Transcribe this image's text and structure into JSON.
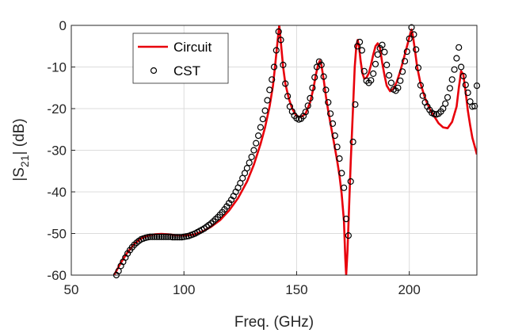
{
  "chart_data": {
    "type": "line",
    "title": "",
    "xlabel": "Freq. (GHz)",
    "ylabel_main": "|S",
    "ylabel_sub": "21",
    "ylabel_tail": "| (dB)",
    "xlim": [
      50,
      230
    ],
    "ylim": [
      -60,
      0
    ],
    "xticks": [
      50,
      100,
      150,
      200
    ],
    "yticks": [
      0,
      -10,
      -20,
      -30,
      -40,
      -50,
      -60
    ],
    "grid": true,
    "legend_position": "top-left",
    "series": [
      {
        "name": "Circuit",
        "style": "line",
        "color": "#e8000b",
        "x": [
          69,
          72,
          75,
          78,
          81,
          84,
          87,
          90,
          93,
          96,
          100,
          104,
          108,
          112,
          116,
          120,
          124,
          128,
          131,
          134,
          136,
          138,
          139.5,
          140.5,
          141.5,
          142.3,
          143,
          144,
          145,
          146.5,
          148,
          150,
          152,
          154,
          156,
          157.5,
          158.5,
          159.5,
          160.3,
          161,
          162,
          163,
          164,
          165,
          166,
          167,
          168,
          169,
          170,
          171,
          171.6,
          172,
          172.6,
          173.2,
          174,
          175,
          175.8,
          176.5,
          177.1,
          177.7,
          178.4,
          179.2,
          180,
          181,
          182,
          183,
          184,
          185,
          186,
          187,
          188,
          189,
          190,
          191.5,
          193,
          194.5,
          196,
          197.5,
          199,
          200.2,
          201,
          201.6,
          202.4,
          203.5,
          205,
          207,
          209,
          211,
          213,
          215,
          217,
          219,
          221,
          222,
          223,
          224,
          225,
          226,
          227,
          228,
          229,
          230
        ],
        "y": [
          -60,
          -57,
          -54.5,
          -52.5,
          -51.2,
          -50.5,
          -50.2,
          -50.1,
          -50.2,
          -50.4,
          -50.5,
          -50.3,
          -49.6,
          -48.4,
          -46.8,
          -44.5,
          -41.5,
          -37.5,
          -33.5,
          -28.5,
          -24.5,
          -19.5,
          -14.5,
          -9.5,
          -4,
          0,
          -4,
          -10,
          -14,
          -17.5,
          -20,
          -21.8,
          -22,
          -21.2,
          -18.5,
          -15,
          -12,
          -9.5,
          -8.5,
          -9.5,
          -13,
          -17,
          -20.5,
          -23.5,
          -26.5,
          -29.5,
          -32.5,
          -36,
          -40.5,
          -47,
          -56,
          -60,
          -54,
          -45,
          -33,
          -20,
          -10,
          -5,
          -3.5,
          -5,
          -8.5,
          -11.5,
          -12.8,
          -12.6,
          -11.5,
          -9.5,
          -7,
          -5,
          -4.3,
          -5.5,
          -9,
          -12,
          -14.5,
          -15.8,
          -15.2,
          -13.5,
          -11,
          -8,
          -5,
          -2.5,
          -1,
          -2.5,
          -5.5,
          -10,
          -14,
          -17.5,
          -20,
          -21.8,
          -23.5,
          -24.5,
          -24.7,
          -23.2,
          -19.5,
          -15,
          -11,
          -11.8,
          -16,
          -20.5,
          -24,
          -27,
          -29,
          -31
        ]
      },
      {
        "name": "CST",
        "style": "markers",
        "marker": "open-circle",
        "color": "#000000",
        "x": [
          70,
          71,
          72,
          73,
          74,
          75,
          76,
          77,
          78,
          79,
          80,
          81,
          82,
          83,
          84,
          85,
          86,
          87,
          88,
          89,
          90,
          91,
          92,
          93,
          94,
          95,
          96,
          97,
          98,
          99,
          100,
          101,
          102,
          103,
          104,
          105,
          106,
          107,
          108,
          109,
          110,
          111,
          112,
          113,
          114,
          115,
          116,
          117,
          118,
          119,
          120,
          121,
          122,
          123,
          124,
          125,
          126,
          127,
          128,
          129,
          130,
          131,
          132,
          133,
          134,
          135,
          136,
          137,
          138,
          139,
          140,
          141,
          142,
          143,
          144,
          145,
          146,
          147,
          148,
          149,
          150,
          151,
          152,
          153,
          154,
          155,
          156,
          157,
          158,
          159,
          160,
          161,
          162,
          163,
          164,
          165,
          166,
          167,
          168,
          169,
          170,
          171,
          172,
          173,
          174,
          175,
          176,
          177,
          178,
          179,
          180,
          181,
          182,
          183,
          184,
          185,
          186,
          187,
          188,
          189,
          190,
          191,
          192,
          193,
          194,
          195,
          196,
          197,
          198,
          199,
          200,
          201,
          202,
          203,
          204,
          205,
          206,
          207,
          208,
          209,
          210,
          211,
          212,
          213,
          214,
          215,
          216,
          217,
          218,
          219,
          220,
          221,
          222,
          223,
          224,
          225,
          226,
          227,
          228,
          229,
          230
        ],
        "y": [
          -60,
          -59,
          -57.8,
          -56.8,
          -55.8,
          -54.8,
          -54,
          -53.3,
          -52.7,
          -52.2,
          -51.8,
          -51.4,
          -51.2,
          -51,
          -50.9,
          -50.8,
          -50.8,
          -50.8,
          -50.8,
          -50.8,
          -50.8,
          -50.8,
          -50.8,
          -50.8,
          -50.8,
          -50.9,
          -50.9,
          -50.9,
          -50.9,
          -50.9,
          -50.8,
          -50.7,
          -50.6,
          -50.4,
          -50.2,
          -50,
          -49.7,
          -49.4,
          -49.1,
          -48.8,
          -48.4,
          -48,
          -47.6,
          -47.1,
          -46.6,
          -46.1,
          -45.5,
          -44.9,
          -44.2,
          -43.5,
          -42.7,
          -41.9,
          -41,
          -40,
          -39,
          -37.9,
          -36.7,
          -35.5,
          -34.3,
          -33,
          -31.6,
          -30,
          -28.3,
          -26.5,
          -24.5,
          -22.5,
          -20.5,
          -18,
          -15.5,
          -13,
          -10,
          -6,
          -1.5,
          -3.5,
          -9.5,
          -14,
          -17,
          -19.5,
          -20.7,
          -21.7,
          -22.3,
          -22.6,
          -22.4,
          -21.8,
          -20.8,
          -19.3,
          -17.5,
          -15,
          -12.5,
          -10,
          -8.7,
          -9.5,
          -12.3,
          -15.5,
          -18.5,
          -21.2,
          -23.6,
          -26.5,
          -29.2,
          -32,
          -35.5,
          -39,
          -46.5,
          -50.5,
          -37.5,
          -28,
          -19,
          -5,
          -4,
          -6,
          -11,
          -13.3,
          -13.8,
          -13.2,
          -11.6,
          -9.3,
          -7,
          -5.5,
          -4.7,
          -6.4,
          -9.5,
          -12,
          -13.8,
          -15.4,
          -15.7,
          -15,
          -13.3,
          -11.1,
          -8.6,
          -6.3,
          -3.2,
          -0.5,
          -2.2,
          -5.8,
          -10.2,
          -14.4,
          -16.9,
          -18.5,
          -19.5,
          -20.3,
          -21,
          -21.3,
          -21.4,
          -21.2,
          -20.7,
          -20,
          -18.8,
          -17.3,
          -15.1,
          -13,
          -10.6,
          -7.9,
          -5.3,
          -10,
          -12.2,
          -14.3,
          -16.2,
          -18.3,
          -19.5,
          -19.4,
          -14.5
        ]
      }
    ]
  },
  "legend": {
    "items": [
      "Circuit",
      "CST"
    ]
  }
}
